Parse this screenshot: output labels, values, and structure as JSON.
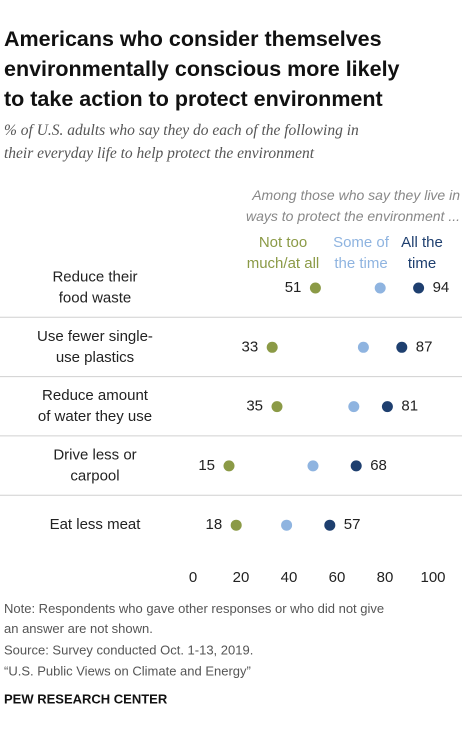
{
  "chart_data": {
    "type": "dot",
    "title": "Americans who consider themselves\nenvironmentally conscious more likely\nto take action to protect environment",
    "subtitle": "% of U.S. adults who say they do each of the following in\ntheir everyday life to help protect the environment",
    "legend_title": "Among those who say they live in\nways to protect the environment ...",
    "categories": [
      "Reduce their\nfood waste",
      "Use fewer single-\nuse plastics",
      "Reduce amount\nof water they use",
      "Drive less or\ncarpool",
      "Eat less meat"
    ],
    "series": [
      {
        "name": "Not too\nmuch/at all",
        "color": "#8b9a46",
        "values": [
          51,
          33,
          35,
          15,
          18
        ]
      },
      {
        "name": "Some of\nthe time",
        "color": "#8fb4e0",
        "values": [
          78,
          71,
          67,
          50,
          39
        ]
      },
      {
        "name": "All the\ntime",
        "color": "#1e3f6f",
        "values": [
          94,
          87,
          81,
          68,
          57
        ]
      }
    ],
    "xlim": [
      0,
      100
    ],
    "xticks": [
      0,
      20,
      40,
      60,
      80,
      100
    ],
    "note": "Note: Respondents who gave other responses or who did not give\nan answer are not shown.",
    "source": "Source: Survey conducted Oct. 1-13, 2019.",
    "report": "“U.S. Public Views on Climate and Energy”",
    "credit": "PEW RESEARCH CENTER"
  }
}
